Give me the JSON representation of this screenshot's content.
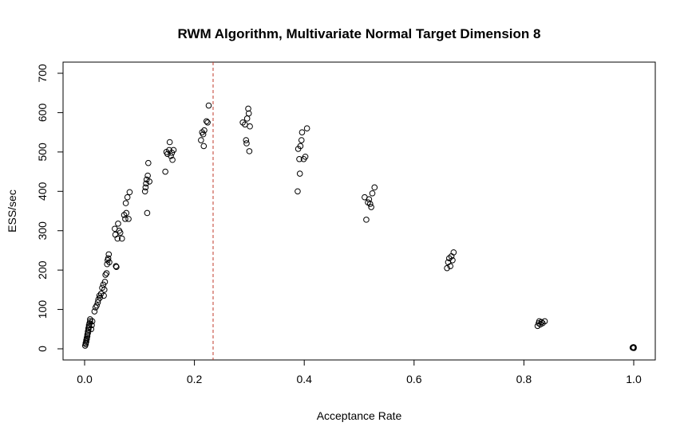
{
  "chart_data": {
    "type": "scatter",
    "title": "RWM Algorithm, Multivariate Normal Target Dimension 8",
    "xlabel": "Acceptance Rate",
    "ylabel": "ESS/sec",
    "xlim": [
      0.0,
      1.0
    ],
    "ylim": [
      0,
      700
    ],
    "xticks": [
      0.0,
      0.2,
      0.4,
      0.6,
      0.8,
      1.0
    ],
    "xtick_labels": [
      "0.0",
      "0.2",
      "0.4",
      "0.6",
      "0.8",
      "1.0"
    ],
    "yticks": [
      0,
      100,
      200,
      300,
      400,
      500,
      600,
      700
    ],
    "ytick_labels": [
      "0",
      "100",
      "200",
      "300",
      "400",
      "500",
      "600",
      "700"
    ],
    "vline": {
      "x": 0.234,
      "color": "#c0392b",
      "style": "dashed"
    },
    "grid": false,
    "marker": "open-circle",
    "points": [
      [
        0.001,
        8
      ],
      [
        0.002,
        12
      ],
      [
        0.002,
        15
      ],
      [
        0.003,
        18
      ],
      [
        0.003,
        22
      ],
      [
        0.004,
        25
      ],
      [
        0.004,
        28
      ],
      [
        0.005,
        32
      ],
      [
        0.005,
        36
      ],
      [
        0.006,
        40
      ],
      [
        0.006,
        44
      ],
      [
        0.007,
        48
      ],
      [
        0.007,
        52
      ],
      [
        0.008,
        56
      ],
      [
        0.008,
        60
      ],
      [
        0.009,
        65
      ],
      [
        0.01,
        70
      ],
      [
        0.01,
        75
      ],
      [
        0.012,
        50
      ],
      [
        0.013,
        60
      ],
      [
        0.014,
        70
      ],
      [
        0.018,
        95
      ],
      [
        0.02,
        105
      ],
      [
        0.022,
        110
      ],
      [
        0.024,
        118
      ],
      [
        0.025,
        125
      ],
      [
        0.027,
        135
      ],
      [
        0.028,
        130
      ],
      [
        0.03,
        140
      ],
      [
        0.032,
        155
      ],
      [
        0.034,
        163
      ],
      [
        0.035,
        135
      ],
      [
        0.036,
        150
      ],
      [
        0.037,
        170
      ],
      [
        0.038,
        188
      ],
      [
        0.04,
        192
      ],
      [
        0.041,
        215
      ],
      [
        0.042,
        225
      ],
      [
        0.043,
        230
      ],
      [
        0.044,
        240
      ],
      [
        0.045,
        220
      ],
      [
        0.055,
        305
      ],
      [
        0.056,
        290
      ],
      [
        0.057,
        210
      ],
      [
        0.058,
        208
      ],
      [
        0.06,
        280
      ],
      [
        0.061,
        318
      ],
      [
        0.063,
        300
      ],
      [
        0.065,
        295
      ],
      [
        0.068,
        280
      ],
      [
        0.072,
        340
      ],
      [
        0.074,
        330
      ],
      [
        0.075,
        370
      ],
      [
        0.076,
        345
      ],
      [
        0.078,
        385
      ],
      [
        0.08,
        330
      ],
      [
        0.082,
        398
      ],
      [
        0.11,
        400
      ],
      [
        0.111,
        410
      ],
      [
        0.112,
        420
      ],
      [
        0.113,
        430
      ],
      [
        0.114,
        345
      ],
      [
        0.115,
        440
      ],
      [
        0.116,
        472
      ],
      [
        0.118,
        425
      ],
      [
        0.147,
        450
      ],
      [
        0.149,
        500
      ],
      [
        0.151,
        495
      ],
      [
        0.154,
        505
      ],
      [
        0.155,
        525
      ],
      [
        0.157,
        490
      ],
      [
        0.159,
        498
      ],
      [
        0.16,
        480
      ],
      [
        0.162,
        505
      ],
      [
        0.212,
        530
      ],
      [
        0.214,
        550
      ],
      [
        0.216,
        545
      ],
      [
        0.217,
        515
      ],
      [
        0.218,
        555
      ],
      [
        0.222,
        578
      ],
      [
        0.224,
        575
      ],
      [
        0.226,
        618
      ],
      [
        0.288,
        575
      ],
      [
        0.292,
        570
      ],
      [
        0.294,
        530
      ],
      [
        0.295,
        522
      ],
      [
        0.296,
        585
      ],
      [
        0.298,
        610
      ],
      [
        0.299,
        598
      ],
      [
        0.3,
        502
      ],
      [
        0.301,
        565
      ],
      [
        0.388,
        400
      ],
      [
        0.389,
        508
      ],
      [
        0.391,
        482
      ],
      [
        0.392,
        445
      ],
      [
        0.393,
        515
      ],
      [
        0.395,
        530
      ],
      [
        0.396,
        550
      ],
      [
        0.399,
        482
      ],
      [
        0.402,
        488
      ],
      [
        0.405,
        560
      ],
      [
        0.51,
        385
      ],
      [
        0.513,
        328
      ],
      [
        0.516,
        372
      ],
      [
        0.518,
        380
      ],
      [
        0.52,
        368
      ],
      [
        0.522,
        360
      ],
      [
        0.524,
        395
      ],
      [
        0.528,
        410
      ],
      [
        0.66,
        205
      ],
      [
        0.662,
        220
      ],
      [
        0.664,
        230
      ],
      [
        0.666,
        210
      ],
      [
        0.668,
        235
      ],
      [
        0.67,
        225
      ],
      [
        0.672,
        245
      ],
      [
        0.825,
        58
      ],
      [
        0.827,
        65
      ],
      [
        0.828,
        70
      ],
      [
        0.83,
        62
      ],
      [
        0.832,
        68
      ],
      [
        0.834,
        65
      ],
      [
        0.838,
        70
      ],
      [
        0.998,
        3
      ],
      [
        0.999,
        4
      ],
      [
        1.0,
        2
      ],
      [
        1.0,
        4
      ]
    ]
  }
}
